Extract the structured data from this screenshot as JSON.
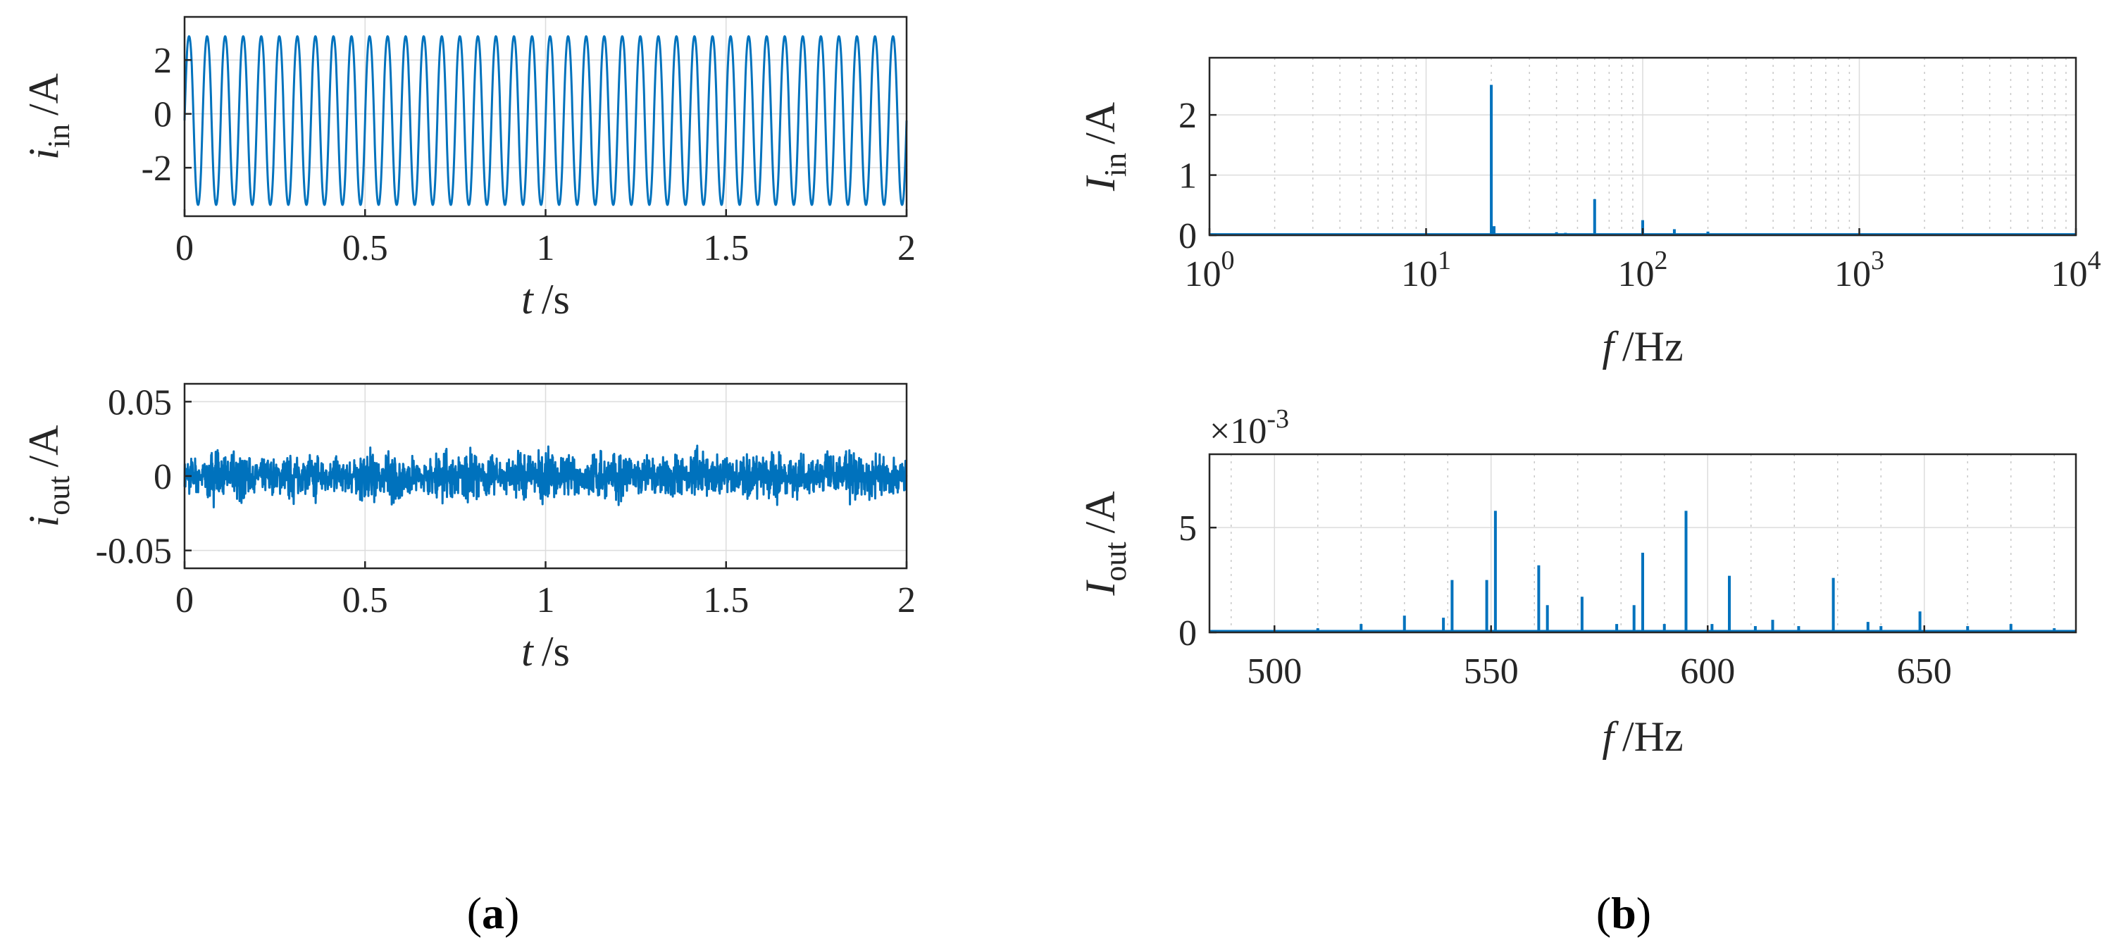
{
  "chart_data": [
    {
      "id": "iin_time",
      "type": "line",
      "ylabel_main": "i",
      "ylabel_sub": "in",
      "ylabel_unit": "/A",
      "xlabel_main": "t",
      "xlabel_unit": "/s",
      "xlim": [
        0,
        2
      ],
      "ylim": [
        -3.8,
        3.6
      ],
      "xticks": [
        0,
        0.5,
        1,
        1.5,
        2
      ],
      "xtick_labels": [
        "0",
        "0.5",
        "1",
        "1.5",
        "2"
      ],
      "yticks": [
        2,
        0,
        -2
      ],
      "ytick_labels": [
        "2",
        "0",
        "-2"
      ],
      "grid": true,
      "series": [
        {
          "waveform": "sinusoid",
          "frequency_hz": 20,
          "max": 3.0,
          "min": -3.5
        }
      ]
    },
    {
      "id": "iout_time",
      "type": "line",
      "ylabel_main": "i",
      "ylabel_sub": "out",
      "ylabel_unit": "/A",
      "xlabel_main": "t",
      "xlabel_unit": "/s",
      "xlim": [
        0,
        2
      ],
      "ylim": [
        -0.062,
        0.062
      ],
      "xticks": [
        0,
        0.5,
        1,
        1.5,
        2
      ],
      "xtick_labels": [
        "0",
        "0.5",
        "1",
        "1.5",
        "2"
      ],
      "yticks": [
        0.05,
        0,
        -0.05
      ],
      "ytick_labels": [
        "0.05",
        "0",
        "-0.05"
      ],
      "grid": true,
      "series": [
        {
          "waveform": "noise",
          "envelope": 0.022
        }
      ]
    },
    {
      "id": "Iin_spectrum",
      "type": "bar",
      "xscale": "log",
      "ylabel_main": "I",
      "ylabel_sub": "in",
      "ylabel_unit": "/A",
      "xlabel_main": "f",
      "xlabel_unit": "/Hz",
      "xlim": [
        1,
        10000
      ],
      "ylim": [
        0,
        2.95
      ],
      "xticks": [
        1,
        10,
        100,
        1000,
        10000
      ],
      "xtick_base": "10",
      "xtick_exps": [
        "0",
        "1",
        "2",
        "3",
        "4"
      ],
      "yticks": [
        2,
        1,
        0
      ],
      "ytick_labels": [
        "2",
        "1",
        "0"
      ],
      "grid": true,
      "x": [
        20,
        20.6,
        40,
        44,
        60,
        100,
        140,
        200,
        300
      ],
      "values": [
        2.5,
        0.15,
        0.05,
        0.04,
        0.6,
        0.25,
        0.1,
        0.06,
        0.03
      ]
    },
    {
      "id": "Iout_spectrum",
      "type": "bar",
      "ylabel_main": "I",
      "ylabel_sub": "out",
      "ylabel_unit": "/A",
      "xlabel_main": "f",
      "xlabel_unit": "/Hz",
      "multiplier_base": "×10",
      "multiplier_exp": "-3",
      "xlim": [
        485,
        685
      ],
      "ylim": [
        0,
        8.5
      ],
      "xticks": [
        500,
        550,
        600,
        650
      ],
      "xtick_labels": [
        "500",
        "550",
        "600",
        "650"
      ],
      "yticks": [
        5,
        0
      ],
      "ytick_labels": [
        "5",
        "0"
      ],
      "grid": true,
      "x": [
        510,
        520,
        530,
        539,
        541,
        549,
        551,
        561,
        563,
        571,
        579,
        583,
        585,
        590,
        595,
        601,
        605,
        611,
        615,
        621,
        629,
        637,
        640,
        649,
        660,
        670,
        680
      ],
      "values": [
        0.2,
        0.4,
        0.8,
        0.7,
        2.5,
        2.5,
        5.8,
        3.2,
        1.3,
        1.7,
        0.4,
        1.3,
        3.8,
        0.4,
        5.8,
        0.4,
        2.7,
        0.3,
        0.6,
        0.3,
        2.6,
        0.5,
        0.3,
        1.0,
        0.3,
        0.4,
        0.2
      ]
    }
  ],
  "panels": {
    "a": "(a)",
    "b": "(b)"
  }
}
